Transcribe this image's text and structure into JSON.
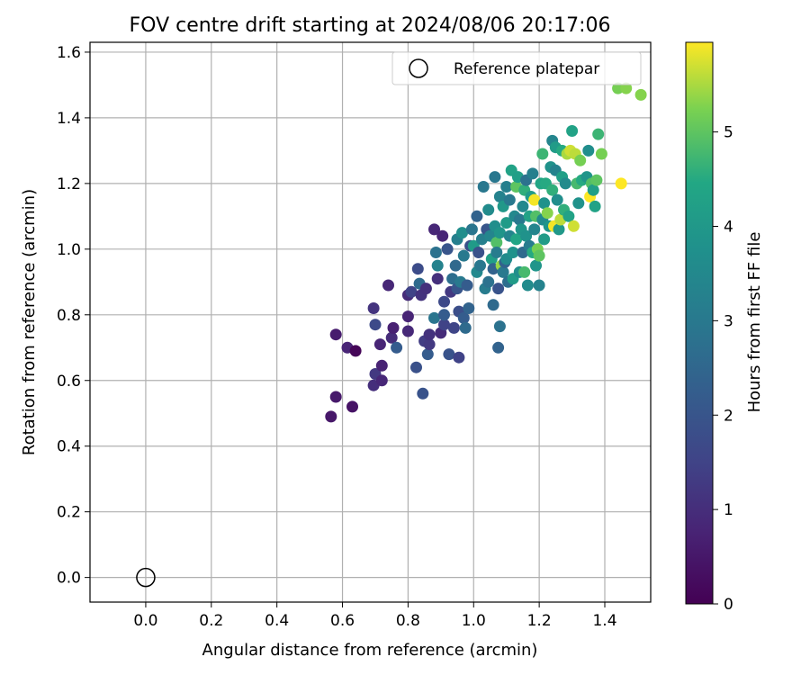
{
  "chart_data": {
    "type": "scatter",
    "title": "FOV centre drift starting at 2024/08/06 20:17:06",
    "xlabel": "Angular distance from reference (arcmin)",
    "ylabel": "Rotation from reference (arcmin)",
    "xlim": [
      -0.17,
      1.54
    ],
    "ylim": [
      -0.075,
      1.63
    ],
    "xticks": [
      "0.0",
      "0.2",
      "0.4",
      "0.6",
      "0.8",
      "1.0",
      "1.2",
      "1.4"
    ],
    "yticks": [
      "0.0",
      "0.2",
      "0.4",
      "0.6",
      "0.8",
      "1.0",
      "1.2",
      "1.4",
      "1.6"
    ],
    "grid": true,
    "legend_position": "top-right",
    "colormap": "viridis",
    "colorbar": {
      "label": "Hours from first FF file",
      "range": [
        0,
        5.95
      ],
      "ticks": [
        "0",
        "1",
        "2",
        "3",
        "4",
        "5"
      ]
    },
    "reference": {
      "name": "Reference platepar",
      "x": 0.0,
      "y": 0.0
    },
    "series": [
      {
        "name": "",
        "points": [
          [
            0.565,
            0.49,
            0.5
          ],
          [
            0.58,
            0.55,
            0.55
          ],
          [
            0.58,
            0.74,
            0.6
          ],
          [
            0.615,
            0.7,
            0.8
          ],
          [
            0.63,
            0.52,
            0.4
          ],
          [
            0.64,
            0.69,
            0.1
          ],
          [
            0.695,
            0.585,
            1.0
          ],
          [
            0.695,
            0.82,
            1.15
          ],
          [
            0.7,
            0.77,
            1.7
          ],
          [
            0.7,
            0.62,
            1.25
          ],
          [
            0.715,
            0.71,
            0.8
          ],
          [
            0.72,
            0.645,
            0.75
          ],
          [
            0.72,
            0.6,
            0.85
          ],
          [
            0.74,
            0.89,
            0.85
          ],
          [
            0.75,
            0.73,
            0.95
          ],
          [
            0.755,
            0.76,
            0.7
          ],
          [
            0.765,
            0.7,
            2.2
          ],
          [
            0.8,
            0.86,
            0.95
          ],
          [
            0.8,
            0.795,
            0.8
          ],
          [
            0.8,
            0.75,
            0.9
          ],
          [
            0.81,
            0.87,
            1.5
          ],
          [
            0.825,
            0.64,
            1.9
          ],
          [
            0.83,
            0.94,
            1.75
          ],
          [
            0.835,
            0.895,
            2.6
          ],
          [
            0.84,
            0.86,
            1.1
          ],
          [
            0.845,
            0.56,
            1.95
          ],
          [
            0.85,
            0.72,
            1.35
          ],
          [
            0.855,
            0.88,
            1.05
          ],
          [
            0.86,
            0.68,
            2.2
          ],
          [
            0.865,
            0.71,
            1.25
          ],
          [
            0.865,
            0.74,
            1.1
          ],
          [
            0.88,
            1.06,
            0.85
          ],
          [
            0.88,
            0.79,
            2.9
          ],
          [
            0.885,
            0.99,
            2.8
          ],
          [
            0.89,
            0.91,
            1.05
          ],
          [
            0.89,
            0.95,
            3.3
          ],
          [
            0.9,
            0.745,
            0.95
          ],
          [
            0.905,
            1.04,
            0.8
          ],
          [
            0.91,
            0.77,
            1.5
          ],
          [
            0.91,
            0.8,
            2.2
          ],
          [
            0.91,
            0.84,
            1.65
          ],
          [
            0.92,
            1.0,
            2.0
          ],
          [
            0.925,
            0.68,
            1.95
          ],
          [
            0.93,
            0.87,
            1.25
          ],
          [
            0.935,
            0.91,
            2.7
          ],
          [
            0.94,
            0.76,
            1.55
          ],
          [
            0.945,
            0.95,
            2.55
          ],
          [
            0.95,
            1.03,
            3.2
          ],
          [
            0.95,
            0.88,
            2.0
          ],
          [
            0.955,
            0.81,
            1.8
          ],
          [
            0.955,
            0.67,
            1.5
          ],
          [
            0.96,
            0.9,
            3.0
          ],
          [
            0.965,
            1.05,
            3.7
          ],
          [
            0.97,
            0.98,
            3.0
          ],
          [
            0.97,
            0.79,
            2.2
          ],
          [
            0.975,
            0.76,
            2.6
          ],
          [
            0.98,
            0.89,
            2.2
          ],
          [
            0.985,
            0.82,
            2.4
          ],
          [
            0.99,
            1.01,
            1.9
          ],
          [
            0.995,
            1.06,
            2.9
          ],
          [
            1.0,
            1.01,
            4.1
          ],
          [
            1.01,
            0.93,
            3.5
          ],
          [
            1.01,
            1.1,
            2.4
          ],
          [
            1.015,
            0.99,
            1.9
          ],
          [
            1.02,
            0.95,
            2.95
          ],
          [
            1.025,
            1.03,
            3.2
          ],
          [
            1.03,
            1.19,
            2.95
          ],
          [
            1.035,
            0.88,
            3.1
          ],
          [
            1.04,
            1.06,
            2.0
          ],
          [
            1.045,
            0.9,
            2.8
          ],
          [
            1.045,
            1.12,
            3.6
          ],
          [
            1.05,
            1.04,
            3.4
          ],
          [
            1.055,
            0.97,
            4.2
          ],
          [
            1.06,
            0.94,
            2.4
          ],
          [
            1.06,
            0.83,
            2.6
          ],
          [
            1.065,
            1.22,
            2.95
          ],
          [
            1.065,
            1.07,
            3.7
          ],
          [
            1.07,
            1.02,
            4.9
          ],
          [
            1.07,
            0.99,
            3.1
          ],
          [
            1.075,
            0.88,
            1.95
          ],
          [
            1.075,
            0.7,
            2.4
          ],
          [
            1.08,
            1.16,
            3.3
          ],
          [
            1.08,
            1.05,
            3.9
          ],
          [
            1.08,
            0.765,
            2.8
          ],
          [
            1.085,
            0.95,
            5.4
          ],
          [
            1.09,
            0.93,
            3.0
          ],
          [
            1.09,
            1.13,
            4.0
          ],
          [
            1.095,
            0.96,
            2.4
          ],
          [
            1.1,
            1.19,
            3.2
          ],
          [
            1.1,
            1.08,
            4.1
          ],
          [
            1.1,
            0.97,
            3.6
          ],
          [
            1.105,
            0.9,
            2.7
          ],
          [
            1.11,
            1.04,
            3.4
          ],
          [
            1.11,
            1.15,
            3.0
          ],
          [
            1.115,
            1.24,
            4.3
          ],
          [
            1.12,
            0.99,
            3.8
          ],
          [
            1.12,
            0.91,
            4.1
          ],
          [
            1.125,
            1.1,
            3.5
          ],
          [
            1.13,
            1.03,
            4.4
          ],
          [
            1.13,
            1.19,
            5.0
          ],
          [
            1.135,
            1.22,
            4.2
          ],
          [
            1.14,
            0.93,
            3.7
          ],
          [
            1.14,
            1.09,
            3.0
          ],
          [
            1.145,
            1.06,
            3.9
          ],
          [
            1.15,
            0.99,
            2.6
          ],
          [
            1.15,
            1.13,
            3.5
          ],
          [
            1.155,
            1.18,
            4.6
          ],
          [
            1.155,
            0.93,
            4.8
          ],
          [
            1.16,
            1.04,
            3.8
          ],
          [
            1.16,
            1.21,
            2.8
          ],
          [
            1.165,
            0.89,
            3.6
          ],
          [
            1.17,
            1.1,
            4.3
          ],
          [
            1.17,
            1.01,
            3.1
          ],
          [
            1.175,
            1.16,
            4.1
          ],
          [
            1.18,
            0.99,
            4.5
          ],
          [
            1.18,
            1.23,
            3.2
          ],
          [
            1.185,
            1.15,
            5.9
          ],
          [
            1.185,
            1.06,
            3.4
          ],
          [
            1.19,
            0.95,
            3.9
          ],
          [
            1.19,
            1.1,
            4.9
          ],
          [
            1.195,
            1.0,
            5.2
          ],
          [
            1.2,
            0.98,
            5.0
          ],
          [
            1.2,
            0.89,
            3.3
          ],
          [
            1.205,
            1.2,
            4.4
          ],
          [
            1.21,
            1.09,
            3.6
          ],
          [
            1.21,
            1.29,
            4.7
          ],
          [
            1.215,
            1.03,
            4.1
          ],
          [
            1.215,
            1.14,
            3.8
          ],
          [
            1.22,
            1.2,
            4.5
          ],
          [
            1.225,
            1.11,
            5.3
          ],
          [
            1.23,
            1.07,
            3.9
          ],
          [
            1.235,
            1.25,
            3.8
          ],
          [
            1.24,
            1.33,
            3.4
          ],
          [
            1.24,
            1.18,
            4.6
          ],
          [
            1.245,
            1.07,
            5.9
          ],
          [
            1.25,
            1.31,
            4.1
          ],
          [
            1.25,
            1.24,
            3.3
          ],
          [
            1.255,
            1.15,
            3.7
          ],
          [
            1.26,
            1.06,
            4.0
          ],
          [
            1.265,
            1.09,
            5.6
          ],
          [
            1.27,
            1.22,
            4.2
          ],
          [
            1.27,
            1.3,
            4.5
          ],
          [
            1.275,
            1.12,
            4.6
          ],
          [
            1.28,
            1.2,
            3.6
          ],
          [
            1.285,
            1.29,
            5.5
          ],
          [
            1.29,
            1.1,
            4.3
          ],
          [
            1.295,
            1.3,
            5.7
          ],
          [
            1.3,
            1.36,
            4.3
          ],
          [
            1.305,
            1.07,
            5.7
          ],
          [
            1.31,
            1.29,
            5.6
          ],
          [
            1.315,
            1.2,
            4.8
          ],
          [
            1.32,
            1.14,
            3.8
          ],
          [
            1.325,
            1.27,
            5.2
          ],
          [
            1.33,
            1.21,
            4.5
          ],
          [
            1.345,
            1.22,
            3.9
          ],
          [
            1.35,
            1.3,
            3.7
          ],
          [
            1.355,
            1.16,
            5.95
          ],
          [
            1.36,
            1.2,
            4.9
          ],
          [
            1.365,
            1.18,
            4.2
          ],
          [
            1.37,
            1.13,
            4.3
          ],
          [
            1.375,
            1.21,
            5.0
          ],
          [
            1.38,
            1.35,
            4.7
          ],
          [
            1.39,
            1.29,
            5.2
          ],
          [
            1.44,
            1.49,
            5.2
          ],
          [
            1.45,
            1.2,
            5.95
          ],
          [
            1.465,
            1.49,
            5.3
          ],
          [
            1.51,
            1.47,
            5.3
          ]
        ]
      }
    ]
  }
}
